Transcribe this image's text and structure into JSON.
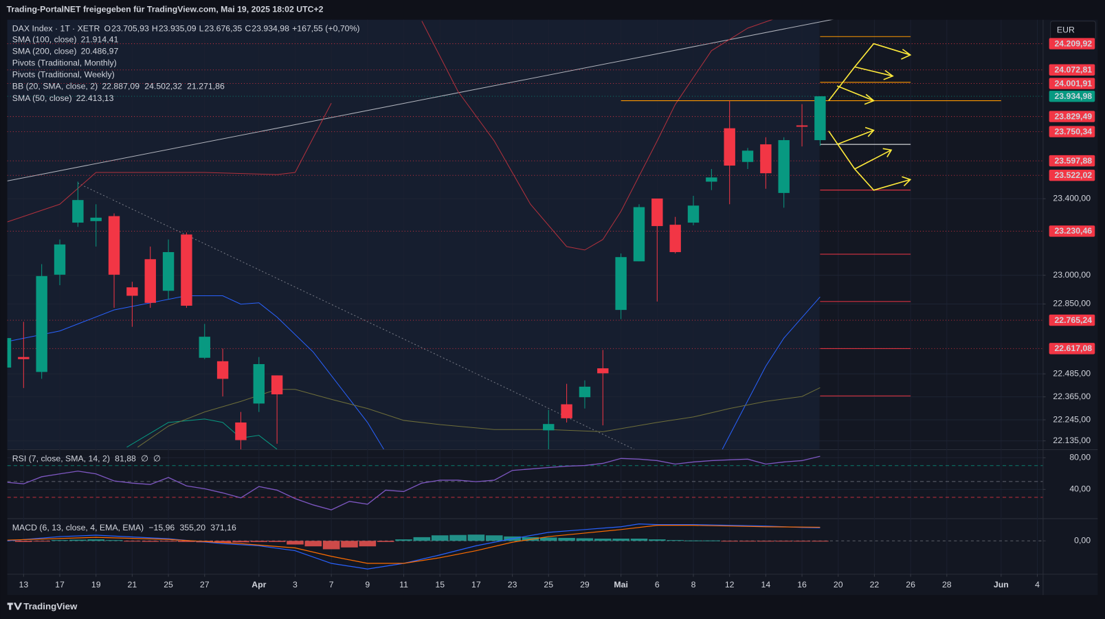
{
  "header": {
    "title": "Trading-PortalNET freigegeben für TradingView.com, Mai 19, 2025 18:02 UTC+2"
  },
  "currency": "EUR",
  "footer": {
    "brand": "TradingView"
  },
  "legend": {
    "symbol": "DAX Index · 1T · XETR",
    "ohlc": [
      {
        "key": "O",
        "value": "23.705,93"
      },
      {
        "key": "H",
        "value": "23.935,09"
      },
      {
        "key": "L",
        "value": "23.676,35"
      },
      {
        "key": "C",
        "value": "23.934,98"
      }
    ],
    "change": "+167,55 (+0,70%)",
    "value_color": "#089981",
    "indicators": [
      {
        "name": "SMA (100, close)",
        "values": [
          "21.914,41"
        ],
        "colors": [
          "#ffeb3b"
        ]
      },
      {
        "name": "SMA (200, close)",
        "values": [
          "20.486,97"
        ],
        "colors": [
          "#ffeb3b"
        ]
      },
      {
        "name": "Pivots (Traditional, Monthly)"
      },
      {
        "name": "Pivots (Traditional, Weekly)"
      },
      {
        "name": "BB (20, SMA, close, 2)",
        "values": [
          "22.887,09",
          "24.502,32",
          "21.271,86"
        ],
        "colors": [
          "#2962ff",
          "#f23645",
          "#089981"
        ]
      },
      {
        "name": "SMA (50, close)",
        "values": [
          "22.413,13"
        ],
        "colors": [
          "#f5c242"
        ]
      }
    ]
  },
  "chart_data": [
    {
      "type": "candlestick",
      "up_color": "#089981",
      "down_color": "#f23645",
      "xlim": [
        -0.9,
        56.3
      ],
      "ylim": [
        22091,
        24335
      ],
      "xticks": [
        {
          "value": 0,
          "label": "13"
        },
        {
          "value": 2,
          "label": "17"
        },
        {
          "value": 4,
          "label": "19"
        },
        {
          "value": 6,
          "label": "21"
        },
        {
          "value": 8,
          "label": "25"
        },
        {
          "value": 10,
          "label": "27"
        },
        {
          "value": 13,
          "label": "Apr"
        },
        {
          "value": 15,
          "label": "3"
        },
        {
          "value": 17,
          "label": "7"
        },
        {
          "value": 19,
          "label": "9"
        },
        {
          "value": 21,
          "label": "11"
        },
        {
          "value": 23,
          "label": "15"
        },
        {
          "value": 25,
          "label": "17"
        },
        {
          "value": 27,
          "label": "23"
        },
        {
          "value": 29,
          "label": "25"
        },
        {
          "value": 31,
          "label": "29"
        },
        {
          "value": 33,
          "label": "Mai"
        },
        {
          "value": 35,
          "label": "6"
        },
        {
          "value": 37,
          "label": "8"
        },
        {
          "value": 39,
          "label": "12"
        },
        {
          "value": 41,
          "label": "14"
        },
        {
          "value": 43,
          "label": "16"
        },
        {
          "value": 45,
          "label": "20"
        },
        {
          "value": 47,
          "label": "22"
        },
        {
          "value": 49,
          "label": "26"
        },
        {
          "value": 51,
          "label": "28"
        },
        {
          "value": 54,
          "label": "Jun"
        },
        {
          "value": 56,
          "label": "4"
        }
      ],
      "yticks": [
        {
          "value": 23400,
          "label": "23.400,00"
        },
        {
          "value": 23000,
          "label": "23.000,00"
        },
        {
          "value": 22850,
          "label": "22.850,00"
        },
        {
          "value": 22485,
          "label": "22.485,00"
        },
        {
          "value": 22365,
          "label": "22.365,00"
        },
        {
          "value": 22245,
          "label": "22.245,00"
        },
        {
          "value": 22135,
          "label": "22.135,00"
        }
      ],
      "x": [
        -1,
        0,
        1,
        2,
        3,
        4,
        5,
        6,
        7,
        8,
        9,
        10,
        11,
        12,
        13,
        14,
        29,
        30,
        31,
        32,
        33,
        34,
        35,
        36,
        37,
        38,
        39,
        40,
        41,
        42,
        43,
        44
      ],
      "open": [
        22518,
        22573,
        22495,
        23003,
        23275,
        23283,
        23309,
        22937,
        23084,
        22919,
        23213,
        22569,
        22551,
        22231,
        22330,
        22477,
        22190,
        22326,
        22363,
        22514,
        22819,
        23073,
        23401,
        23264,
        23275,
        23489,
        23768,
        23592,
        23684,
        23430,
        23783,
        23705.93
      ],
      "high": [
        22679,
        22757,
        23058,
        23187,
        23489,
        23371,
        23323,
        22966,
        23150,
        23187,
        23224,
        22746,
        22617,
        22286,
        22573,
        22477,
        22297,
        22433,
        22451,
        22610,
        23114,
        23371,
        23401,
        23305,
        23415,
        23555,
        23912,
        23665,
        23721,
        23721,
        23894,
        23935.09
      ],
      "low": [
        22507,
        22411,
        22459,
        22948,
        23253,
        23150,
        22830,
        22731,
        22830,
        22874,
        22830,
        22562,
        22367,
        22040,
        22286,
        22120,
        22050,
        22231,
        22304,
        22216,
        22771,
        23073,
        22863,
        23114,
        23261,
        23445,
        23371,
        23555,
        23452,
        23353,
        23673,
        23676.35
      ],
      "close": [
        22672,
        22562,
        22996,
        23161,
        23393,
        23301,
        23003,
        22893,
        22856,
        23121,
        22841,
        22679,
        22459,
        22139,
        22536,
        22378,
        22223,
        22253,
        22418,
        22488,
        23095,
        23356,
        23257,
        23121,
        23364,
        23511,
        23573,
        23651,
        23533,
        23706,
        23776,
        23934.98
      ],
      "lines": [
        {
          "color": "#b3313d",
          "x": [
            -0.9,
            2,
            4,
            10,
            14,
            15,
            17,
            19,
            22,
            24,
            26,
            28,
            30,
            31,
            32,
            33,
            35,
            36,
            38,
            40,
            42
          ],
          "values": [
            23279,
            23371,
            23537,
            23537,
            23526,
            23537,
            23899,
            null,
            24328,
            23960,
            23702,
            23371,
            23150,
            23132,
            23187,
            23334,
            23702,
            23893,
            24173,
            24291,
            24357
          ]
        },
        {
          "color": "#2962ff",
          "x": [
            -0.9,
            2,
            5,
            9,
            11,
            12,
            13,
            14,
            16,
            19,
            19.9,
            21,
            38.6,
            41,
            42,
            44
          ],
          "values": [
            22654,
            22709,
            22819,
            22893,
            22893,
            22849,
            22856,
            22782,
            22599,
            22231,
            22091,
            null,
            22091,
            22525,
            22672,
            22887
          ]
        },
        {
          "color": "#089981",
          "x": [
            5.7,
            8,
            10,
            11,
            12,
            13,
            14
          ],
          "values": [
            22102,
            22231,
            22249,
            22231,
            22150,
            22164,
            22091
          ]
        },
        {
          "color": "#6f6f3a",
          "x": [
            6.3,
            8,
            10,
            12,
            14,
            15,
            17,
            19,
            21,
            23,
            26,
            29,
            32,
            35,
            37,
            39,
            41,
            43,
            44
          ],
          "values": [
            22102,
            22212,
            22286,
            22341,
            22404,
            22404,
            22352,
            22304,
            22242,
            22220,
            22194,
            22194,
            22183,
            22231,
            22260,
            22304,
            22341,
            22367,
            22413
          ]
        }
      ],
      "levels": [
        {
          "value": 24209.92,
          "label": "24.209,92",
          "color": "#f23645"
        },
        {
          "value": 24072.81,
          "label": "24.072,81",
          "color": "#f23645"
        },
        {
          "value": 24001.91,
          "label": "24.001,91",
          "color": "#f23645"
        },
        {
          "value": 23934.98,
          "label": "23.934,98",
          "color": "#089981"
        },
        {
          "value": 23829.49,
          "label": "23.829,49",
          "color": "#f23645"
        },
        {
          "value": 23750.34,
          "label": "23.750,34",
          "color": "#f23645"
        },
        {
          "value": 23597.88,
          "label": "23.597,88",
          "color": "#f23645"
        },
        {
          "value": 23522.02,
          "label": "23.522,02",
          "color": "#f23645"
        },
        {
          "value": 23230.46,
          "label": "23.230,46",
          "color": "#f23645"
        },
        {
          "value": 22765.24,
          "label": "22.765,24",
          "color": "#f23645"
        },
        {
          "value": 22617.08,
          "label": "22.617,08",
          "color": "#f23645"
        }
      ],
      "hlines": [
        {
          "value": 24247,
          "x": [
            44,
            49
          ],
          "color": "#ff9800"
        },
        {
          "value": 24008,
          "x": [
            44,
            49
          ],
          "color": "#ff9800"
        },
        {
          "value": 23912,
          "x": [
            33,
            54
          ],
          "color": "#ff9800"
        },
        {
          "value": 23684,
          "x": [
            44,
            49
          ],
          "color": "#ffffff"
        },
        {
          "value": 23445,
          "x": [
            44,
            49
          ],
          "color": "#f23645"
        },
        {
          "value": 23110,
          "x": [
            44,
            49
          ],
          "color": "#f23645"
        },
        {
          "value": 22863,
          "x": [
            44,
            49
          ],
          "color": "#f23645"
        },
        {
          "value": 22617,
          "x": [
            44,
            49
          ],
          "color": "#f23645"
        },
        {
          "value": 22370,
          "x": [
            44,
            49
          ],
          "color": "#f23645"
        }
      ]
    },
    {
      "type": "line",
      "title": "RSI (7, close, SMA, 14, 2)",
      "legend_values": [
        "81,88",
        "∅",
        "∅"
      ],
      "legend_colors": [
        "#7e57c2",
        "#d1d4dc",
        "#d1d4dc"
      ],
      "ylim": [
        4.4,
        88.9
      ],
      "yticks": [
        {
          "value": 80,
          "label": "80,00"
        },
        {
          "value": 40,
          "label": "40,00"
        }
      ],
      "hlines": [
        {
          "value": 70,
          "color": "#089981"
        },
        {
          "value": 50,
          "color": "#787b86"
        },
        {
          "value": 30,
          "color": "#f23645"
        }
      ],
      "x": [
        -0.9,
        0,
        1,
        2,
        3,
        4,
        5,
        6,
        7,
        8,
        9,
        10,
        11,
        12,
        13,
        14,
        15,
        16,
        17,
        18,
        19,
        20,
        21,
        22,
        23,
        24,
        25,
        26,
        27,
        28,
        29,
        30,
        31,
        32,
        33,
        34,
        35,
        36,
        37,
        38,
        39,
        40,
        41,
        42,
        43,
        44
      ],
      "series": [
        {
          "color": "#7e57c2",
          "values": [
            48.9,
            47.1,
            56,
            59.6,
            63.1,
            59.6,
            50.7,
            48,
            46.2,
            55.1,
            44.4,
            40.9,
            35.6,
            29.3,
            43.6,
            39.1,
            28.4,
            20.4,
            14.2,
            24.9,
            21.3,
            39.1,
            37.3,
            48,
            51.6,
            51.6,
            49.8,
            51.6,
            64,
            65.8,
            67.6,
            69.3,
            70.2,
            72.9,
            79.1,
            78.2,
            76.4,
            72,
            74.7,
            76.4,
            77.3,
            78.2,
            72,
            74.7,
            76.4,
            81.88
          ]
        }
      ]
    },
    {
      "type": "macd",
      "title": "MACD (6, 13, close, 4, EMA, EMA)",
      "legend_values": [
        "−15,96",
        "355,20",
        "371,16"
      ],
      "legend_colors": [
        "#ffcdd2",
        "#2962ff",
        "#ff6d00"
      ],
      "ylim": [
        -904,
        577
      ],
      "yticks": [
        {
          "value": 0,
          "label": "0,00"
        }
      ],
      "histogram": {
        "up_color": "#26a69a",
        "down_color": "#ef5350",
        "x": [
          0,
          1,
          2,
          3,
          4,
          5,
          6,
          7,
          8,
          9,
          10,
          11,
          12,
          13,
          14,
          15,
          16,
          17,
          18,
          19,
          20,
          21,
          22,
          23,
          24,
          25,
          26,
          27,
          28,
          29,
          30,
          31,
          32,
          33,
          34,
          35,
          36,
          37,
          38,
          39,
          40,
          41,
          42,
          43,
          44
        ],
        "values": [
          -30,
          -20,
          20,
          30,
          40,
          20,
          -20,
          -25,
          -20,
          -30,
          -40,
          -50,
          -40,
          -30,
          -30,
          -100,
          -150,
          -230,
          -180,
          -150,
          -30,
          40,
          100,
          150,
          160,
          170,
          150,
          120,
          100,
          90,
          80,
          70,
          60,
          60,
          60,
          40,
          20,
          10,
          10,
          -10,
          -15,
          -20,
          -15,
          -10,
          -15.96
        ]
      },
      "series": [
        {
          "color": "#2962ff",
          "x": [
            -0.9,
            2,
            4,
            8,
            11,
            13,
            15,
            17,
            19,
            21,
            23,
            25,
            27,
            29,
            31,
            33,
            34,
            35,
            37,
            39,
            41,
            43,
            44
          ],
          "values": [
            0,
            115,
            154,
            58,
            -77,
            -135,
            -269,
            -615,
            -769,
            -615,
            -385,
            -135,
            58,
            231,
            308,
            385,
            462,
            442,
            442,
            423,
            404,
            365,
            355.2
          ]
        },
        {
          "color": "#ff6d00",
          "x": [
            -0.9,
            4,
            8,
            12,
            15,
            17,
            19,
            21,
            23,
            25,
            27,
            29,
            31,
            33,
            35,
            37,
            39,
            41,
            44
          ],
          "values": [
            19,
            96,
            38,
            -77,
            -192,
            -423,
            -615,
            -615,
            -462,
            -269,
            -38,
            115,
            212,
            308,
            423,
            423,
            404,
            385,
            371.16
          ]
        }
      ]
    }
  ]
}
